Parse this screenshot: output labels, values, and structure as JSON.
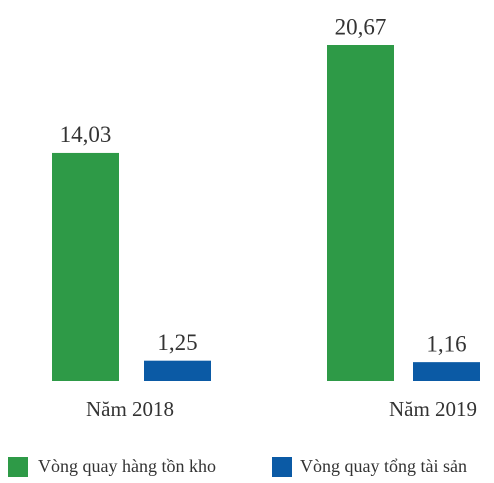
{
  "chart_data": {
    "type": "bar",
    "categories": [
      "Năm 2018",
      "Năm 2019"
    ],
    "series": [
      {
        "name": "Vòng quay hàng tồn kho",
        "color": "#2e9a47",
        "values": [
          14.03,
          20.67
        ],
        "value_labels": [
          "14,03",
          "20,67"
        ]
      },
      {
        "name": "Vòng quay tổng tài sản",
        "color": "#0b5aa5",
        "values": [
          1.25,
          1.16
        ],
        "value_labels": [
          "1,25",
          "1,16"
        ]
      }
    ]
  }
}
